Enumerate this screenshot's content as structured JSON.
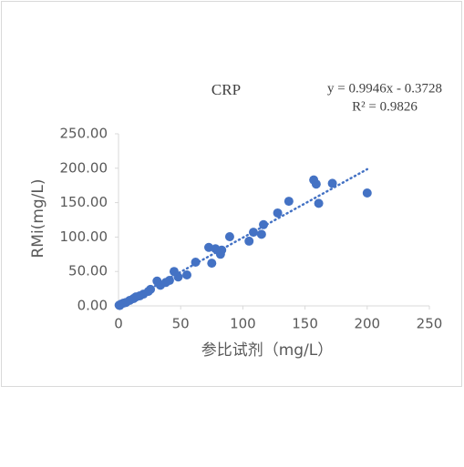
{
  "chart_data": {
    "type": "scatter",
    "title": "CRP",
    "x_label": "参比试剂（mg/L）",
    "y_label": "RMi(mg/L)",
    "color": "#4472c4",
    "x": [
      200,
      157,
      159,
      161,
      172,
      137,
      128,
      116.6,
      115,
      108.5,
      105,
      89.4,
      83,
      82,
      78,
      72.6,
      75,
      62,
      55,
      48,
      44.7,
      41,
      38,
      33.7,
      31,
      25.7,
      24,
      20,
      17,
      14,
      12,
      9,
      6,
      4,
      2,
      1,
      0.5
    ],
    "y": [
      164,
      183,
      177,
      149,
      178,
      152,
      135,
      118,
      104,
      107,
      94,
      100.5,
      81,
      75,
      83,
      85,
      62,
      63.5,
      45,
      42,
      50,
      37,
      34,
      30,
      36,
      24,
      21,
      17,
      14.5,
      13,
      10.5,
      8,
      5,
      4,
      2.5,
      0.5,
      1
    ],
    "xlim": [
      0,
      250
    ],
    "xticks": [
      0,
      50,
      100,
      150,
      200,
      250
    ],
    "ylim": [
      0,
      250
    ],
    "yticks": [
      {
        "value": 0,
        "label": "0.00"
      },
      {
        "value": 50,
        "label": "50.00"
      },
      {
        "value": 100,
        "label": "100.00"
      },
      {
        "value": 150,
        "label": "150.00"
      },
      {
        "value": 200,
        "label": "200.00"
      },
      {
        "value": 250,
        "label": "250.00"
      }
    ],
    "trendline": {
      "slope": 0.9946,
      "intercept": -0.3728,
      "label": "y = 0.9946x - 0.3728",
      "r2_label": "R² = 0.9826"
    }
  }
}
